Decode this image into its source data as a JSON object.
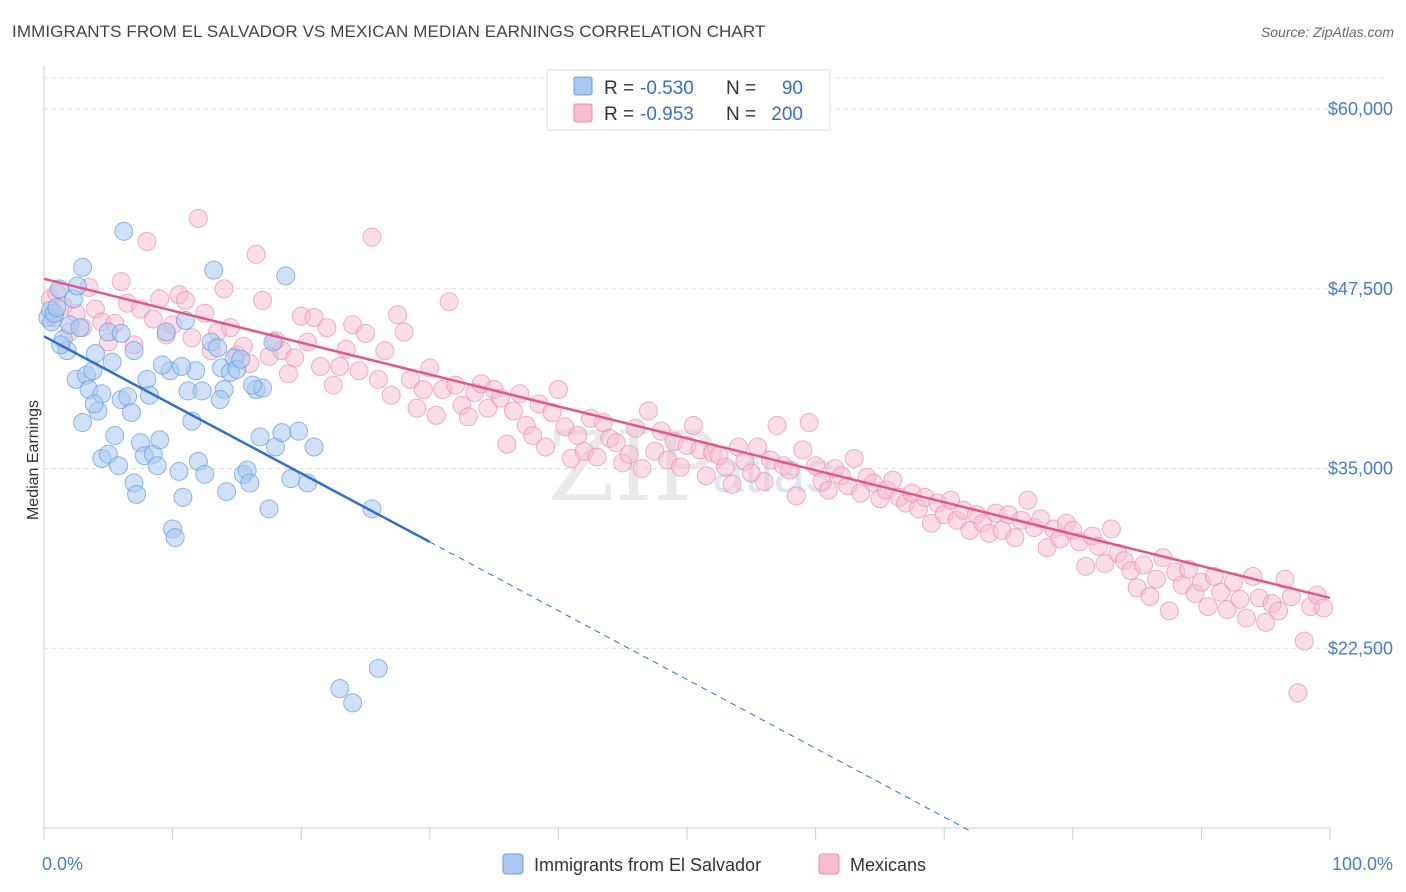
{
  "title": "IMMIGRANTS FROM EL SALVADOR VS MEXICAN MEDIAN EARNINGS CORRELATION CHART",
  "source": "Source: ZipAtlas.com",
  "watermark": {
    "main": "ZIP",
    "sub": "atlas"
  },
  "colors": {
    "blue_fill": "#a9c8f0",
    "blue_stroke": "#6a9fe0",
    "blue_line": "#2f6fce",
    "pink_fill": "#f6bcd0",
    "pink_stroke": "#eb8fb0",
    "pink_line": "#e0588a",
    "tick_label": "#4a7cc9"
  },
  "legend": {
    "rows": [
      {
        "r_label": "R =",
        "r_value": "-0.530",
        "n_label": "N =",
        "n_value": "90"
      },
      {
        "r_label": "R =",
        "r_value": "-0.953",
        "n_label": "N =",
        "n_value": "200"
      }
    ]
  },
  "bottom_legend": [
    "Immigrants from El Salvador",
    "Mexicans"
  ],
  "chart_data": {
    "type": "scatter",
    "title": "IMMIGRANTS FROM EL SALVADOR VS MEXICAN MEDIAN EARNINGS CORRELATION CHART",
    "xlabel": "",
    "ylabel": "Median Earnings",
    "xlim": [
      0,
      100
    ],
    "ylim": [
      10000,
      63000
    ],
    "x_ticks": [
      "0.0%",
      "100.0%"
    ],
    "y_ticks": [
      {
        "value": 22500,
        "label": "$22,500"
      },
      {
        "value": 35000,
        "label": "$35,000"
      },
      {
        "value": 47500,
        "label": "$47,500"
      },
      {
        "value": 60000,
        "label": "$60,000"
      }
    ],
    "grid": "horizontal dashed",
    "legend_placement": "top-center",
    "series": [
      {
        "name": "Immigrants from El Salvador",
        "color": "#a9c8f0",
        "trend": {
          "x0": 0,
          "y0": 44200,
          "x1": 30,
          "y1": 29900,
          "dash_to_x": 72,
          "dash_to_y": 9800
        },
        "points": [
          [
            0.3,
            45500
          ],
          [
            0.5,
            46000
          ],
          [
            0.6,
            45200
          ],
          [
            0.8,
            45800
          ],
          [
            1.0,
            46200
          ],
          [
            1.2,
            47500
          ],
          [
            1.5,
            44000
          ],
          [
            1.8,
            43200
          ],
          [
            2.0,
            45000
          ],
          [
            2.3,
            46800
          ],
          [
            2.5,
            41200
          ],
          [
            2.8,
            44800
          ],
          [
            3.0,
            38200
          ],
          [
            3.0,
            49000
          ],
          [
            3.3,
            41500
          ],
          [
            3.5,
            40500
          ],
          [
            3.8,
            41800
          ],
          [
            4.0,
            43000
          ],
          [
            4.2,
            39000
          ],
          [
            4.5,
            35700
          ],
          [
            4.5,
            40200
          ],
          [
            5.0,
            44500
          ],
          [
            5.0,
            36000
          ],
          [
            5.5,
            37300
          ],
          [
            5.8,
            35200
          ],
          [
            6.0,
            39800
          ],
          [
            6.2,
            51500
          ],
          [
            6.5,
            40000
          ],
          [
            7.0,
            43200
          ],
          [
            7.0,
            34000
          ],
          [
            7.2,
            33200
          ],
          [
            7.5,
            36800
          ],
          [
            7.8,
            35900
          ],
          [
            8.0,
            41200
          ],
          [
            8.2,
            40100
          ],
          [
            8.5,
            36000
          ],
          [
            8.8,
            35200
          ],
          [
            9.0,
            37000
          ],
          [
            9.5,
            44500
          ],
          [
            9.8,
            41800
          ],
          [
            10.0,
            30800
          ],
          [
            10.2,
            30200
          ],
          [
            10.5,
            34800
          ],
          [
            10.8,
            33000
          ],
          [
            11.0,
            45300
          ],
          [
            11.2,
            40400
          ],
          [
            11.5,
            38300
          ],
          [
            11.8,
            41800
          ],
          [
            12.0,
            35500
          ],
          [
            12.3,
            40400
          ],
          [
            12.5,
            34600
          ],
          [
            13.0,
            43800
          ],
          [
            13.2,
            48800
          ],
          [
            13.5,
            43400
          ],
          [
            13.8,
            42000
          ],
          [
            14.0,
            40500
          ],
          [
            14.2,
            33400
          ],
          [
            14.5,
            41700
          ],
          [
            14.8,
            42700
          ],
          [
            15.0,
            41900
          ],
          [
            15.5,
            34600
          ],
          [
            15.8,
            34900
          ],
          [
            16.0,
            34000
          ],
          [
            16.5,
            40500
          ],
          [
            16.8,
            37200
          ],
          [
            17.0,
            40600
          ],
          [
            17.5,
            32200
          ],
          [
            18.0,
            36500
          ],
          [
            18.5,
            37500
          ],
          [
            18.8,
            48400
          ],
          [
            19.2,
            34300
          ],
          [
            19.8,
            37600
          ],
          [
            20.5,
            34000
          ],
          [
            21.0,
            36500
          ],
          [
            23.0,
            19700
          ],
          [
            24.0,
            18700
          ],
          [
            25.5,
            32200
          ],
          [
            26.0,
            21100
          ],
          [
            1.3,
            43600
          ],
          [
            2.6,
            47700
          ],
          [
            3.9,
            39500
          ],
          [
            5.3,
            42400
          ],
          [
            6.8,
            38900
          ],
          [
            9.2,
            42200
          ],
          [
            10.7,
            42100
          ],
          [
            13.7,
            39800
          ],
          [
            15.3,
            42600
          ],
          [
            16.2,
            40800
          ],
          [
            17.8,
            43800
          ],
          [
            6.0,
            44400
          ]
        ]
      },
      {
        "name": "Mexicans",
        "color": "#f6bcd0",
        "trend": {
          "x0": 0,
          "y0": 48200,
          "x1": 100,
          "y1": 26000
        },
        "points": [
          [
            0.5,
            46800
          ],
          [
            0.8,
            45500
          ],
          [
            1.0,
            47200
          ],
          [
            1.5,
            46300
          ],
          [
            2.0,
            44500
          ],
          [
            2.5,
            45800
          ],
          [
            3.0,
            44800
          ],
          [
            3.5,
            47600
          ],
          [
            4.0,
            46100
          ],
          [
            4.5,
            45200
          ],
          [
            5.0,
            43800
          ],
          [
            5.5,
            45100
          ],
          [
            6.0,
            48000
          ],
          [
            6.5,
            46500
          ],
          [
            7.0,
            43600
          ],
          [
            7.5,
            46100
          ],
          [
            8.0,
            50800
          ],
          [
            8.5,
            45400
          ],
          [
            9.0,
            46800
          ],
          [
            9.5,
            44300
          ],
          [
            10.0,
            45000
          ],
          [
            10.5,
            47100
          ],
          [
            11.0,
            46700
          ],
          [
            11.5,
            44100
          ],
          [
            12.0,
            52400
          ],
          [
            12.5,
            45800
          ],
          [
            13.0,
            43200
          ],
          [
            13.5,
            44500
          ],
          [
            14.0,
            47500
          ],
          [
            14.5,
            44800
          ],
          [
            15.0,
            42900
          ],
          [
            15.5,
            43500
          ],
          [
            16.0,
            42300
          ],
          [
            16.5,
            49900
          ],
          [
            17.0,
            46700
          ],
          [
            17.5,
            42800
          ],
          [
            18.0,
            43900
          ],
          [
            18.5,
            43200
          ],
          [
            19.0,
            41600
          ],
          [
            19.5,
            42700
          ],
          [
            20.0,
            45600
          ],
          [
            20.5,
            43800
          ],
          [
            21.0,
            45500
          ],
          [
            21.5,
            42100
          ],
          [
            22.0,
            44800
          ],
          [
            22.5,
            40800
          ],
          [
            23.0,
            42100
          ],
          [
            23.5,
            43300
          ],
          [
            24.0,
            45000
          ],
          [
            24.5,
            41800
          ],
          [
            25.0,
            44400
          ],
          [
            25.5,
            51100
          ],
          [
            26.0,
            41200
          ],
          [
            26.5,
            43200
          ],
          [
            27.0,
            40100
          ],
          [
            27.5,
            45700
          ],
          [
            28.0,
            44500
          ],
          [
            28.5,
            41200
          ],
          [
            29.0,
            39200
          ],
          [
            29.5,
            40500
          ],
          [
            30.0,
            42000
          ],
          [
            30.5,
            38700
          ],
          [
            31.0,
            40500
          ],
          [
            31.5,
            46600
          ],
          [
            32.0,
            40800
          ],
          [
            32.5,
            39400
          ],
          [
            33.0,
            38600
          ],
          [
            33.5,
            40300
          ],
          [
            34.0,
            40900
          ],
          [
            34.5,
            39200
          ],
          [
            35.0,
            40500
          ],
          [
            35.5,
            39900
          ],
          [
            36.0,
            36700
          ],
          [
            36.5,
            39000
          ],
          [
            37.0,
            40200
          ],
          [
            37.5,
            38000
          ],
          [
            38.0,
            37300
          ],
          [
            38.5,
            39500
          ],
          [
            39.0,
            36500
          ],
          [
            39.5,
            38900
          ],
          [
            40.0,
            40500
          ],
          [
            40.5,
            37900
          ],
          [
            41.0,
            35700
          ],
          [
            41.5,
            37300
          ],
          [
            42.0,
            36200
          ],
          [
            42.5,
            38500
          ],
          [
            43.0,
            35800
          ],
          [
            43.5,
            38200
          ],
          [
            44.0,
            37100
          ],
          [
            44.5,
            36800
          ],
          [
            45.0,
            35400
          ],
          [
            45.5,
            36000
          ],
          [
            46.0,
            37800
          ],
          [
            46.5,
            35000
          ],
          [
            47.0,
            39000
          ],
          [
            47.5,
            36200
          ],
          [
            48.0,
            37600
          ],
          [
            48.5,
            35600
          ],
          [
            49.0,
            36900
          ],
          [
            49.5,
            35100
          ],
          [
            50.0,
            36600
          ],
          [
            50.5,
            38000
          ],
          [
            51.0,
            36300
          ],
          [
            51.5,
            34500
          ],
          [
            52.0,
            36100
          ],
          [
            52.5,
            35900
          ],
          [
            53.0,
            35100
          ],
          [
            53.5,
            33900
          ],
          [
            54.0,
            36500
          ],
          [
            54.5,
            35500
          ],
          [
            55.0,
            34700
          ],
          [
            55.5,
            36500
          ],
          [
            56.0,
            34100
          ],
          [
            56.5,
            35600
          ],
          [
            57.0,
            38000
          ],
          [
            57.5,
            35200
          ],
          [
            58.0,
            34900
          ],
          [
            58.5,
            33100
          ],
          [
            59.0,
            36300
          ],
          [
            59.5,
            38200
          ],
          [
            60.0,
            35200
          ],
          [
            60.5,
            34100
          ],
          [
            61.0,
            33500
          ],
          [
            61.5,
            35000
          ],
          [
            62.0,
            34500
          ],
          [
            62.5,
            33800
          ],
          [
            63.0,
            35700
          ],
          [
            63.5,
            33300
          ],
          [
            64.0,
            34400
          ],
          [
            64.5,
            34000
          ],
          [
            65.0,
            32900
          ],
          [
            65.5,
            33500
          ],
          [
            66.0,
            34200
          ],
          [
            66.5,
            33000
          ],
          [
            67.0,
            32600
          ],
          [
            67.5,
            33300
          ],
          [
            68.0,
            32200
          ],
          [
            68.5,
            33000
          ],
          [
            69.0,
            31200
          ],
          [
            69.5,
            32600
          ],
          [
            70.0,
            31800
          ],
          [
            70.5,
            32800
          ],
          [
            71.0,
            31400
          ],
          [
            71.5,
            32100
          ],
          [
            72.0,
            30700
          ],
          [
            72.5,
            31800
          ],
          [
            73.0,
            31200
          ],
          [
            73.5,
            30500
          ],
          [
            74.0,
            31900
          ],
          [
            74.5,
            30700
          ],
          [
            75.0,
            31800
          ],
          [
            75.5,
            30200
          ],
          [
            76.0,
            31400
          ],
          [
            76.5,
            32800
          ],
          [
            77.0,
            30900
          ],
          [
            77.5,
            31500
          ],
          [
            78.0,
            29500
          ],
          [
            78.5,
            30800
          ],
          [
            79.0,
            30100
          ],
          [
            79.5,
            31200
          ],
          [
            80.0,
            30700
          ],
          [
            80.5,
            29900
          ],
          [
            81.0,
            28200
          ],
          [
            81.5,
            30300
          ],
          [
            82.0,
            29600
          ],
          [
            82.5,
            28400
          ],
          [
            83.0,
            30800
          ],
          [
            83.5,
            29100
          ],
          [
            84.0,
            28600
          ],
          [
            84.5,
            27900
          ],
          [
            85.0,
            26700
          ],
          [
            85.5,
            28300
          ],
          [
            86.0,
            26100
          ],
          [
            86.5,
            27300
          ],
          [
            87.0,
            28800
          ],
          [
            87.5,
            25100
          ],
          [
            88.0,
            27800
          ],
          [
            88.5,
            26900
          ],
          [
            89.0,
            28000
          ],
          [
            89.5,
            26300
          ],
          [
            90.0,
            27100
          ],
          [
            90.5,
            25400
          ],
          [
            91.0,
            27500
          ],
          [
            91.5,
            26400
          ],
          [
            92.0,
            25200
          ],
          [
            92.5,
            27100
          ],
          [
            93.0,
            25900
          ],
          [
            93.5,
            24600
          ],
          [
            94.0,
            27500
          ],
          [
            94.5,
            26000
          ],
          [
            95.0,
            24300
          ],
          [
            95.5,
            25600
          ],
          [
            96.0,
            25100
          ],
          [
            96.5,
            27300
          ],
          [
            97.0,
            26100
          ],
          [
            97.5,
            19400
          ],
          [
            98.0,
            23000
          ],
          [
            98.5,
            25400
          ],
          [
            99.0,
            26200
          ],
          [
            99.5,
            25300
          ]
        ]
      }
    ]
  }
}
